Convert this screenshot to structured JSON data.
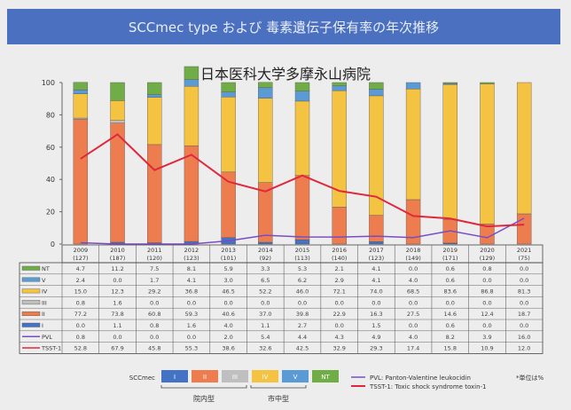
{
  "banner_title": "SCCmec type および 毒素遺伝子保有率の年次推移",
  "chart_data": {
    "type": "bar",
    "stacked": true,
    "title": "日本医科大学多摩永山病院",
    "ylim": [
      0,
      100
    ],
    "yticks": [
      0,
      20,
      40,
      60,
      80,
      100
    ],
    "categories": [
      "2009",
      "2010",
      "2011",
      "2012",
      "2013",
      "2014",
      "2015",
      "2016",
      "2017",
      "2018",
      "2019",
      "2020",
      "2021"
    ],
    "counts": [
      "(127)",
      "(187)",
      "(120)",
      "(123)",
      "(101)",
      "(92)",
      "(113)",
      "(140)",
      "(123)",
      "(149)",
      "(171)",
      "(129)",
      "(75)"
    ],
    "series": [
      {
        "name": "I",
        "kind": "bar",
        "color": "#4472c4",
        "values": [
          0.0,
          1.1,
          0.8,
          1.6,
          4.0,
          1.1,
          2.7,
          0.0,
          1.5,
          0.0,
          0.6,
          0.0,
          0.0
        ]
      },
      {
        "name": "II",
        "kind": "bar",
        "color": "#ed7d4f",
        "values": [
          77.2,
          73.8,
          60.8,
          59.3,
          40.6,
          37.0,
          39.8,
          22.9,
          16.3,
          27.5,
          14.6,
          12.4,
          18.7
        ]
      },
      {
        "name": "III",
        "kind": "bar",
        "color": "#bfbfbf",
        "values": [
          0.8,
          1.6,
          0.0,
          0.0,
          0.0,
          0.0,
          0.0,
          0.0,
          0.0,
          0.0,
          0.0,
          0.0,
          0.0
        ]
      },
      {
        "name": "IV",
        "kind": "bar",
        "color": "#f5c342",
        "values": [
          15.0,
          12.3,
          29.2,
          36.8,
          46.5,
          52.2,
          46.0,
          72.1,
          74.0,
          68.5,
          83.6,
          86.8,
          81.3
        ]
      },
      {
        "name": "V",
        "kind": "bar",
        "color": "#5b9bd5",
        "values": [
          2.4,
          0.0,
          1.7,
          4.1,
          3.0,
          6.5,
          6.2,
          2.9,
          4.1,
          4.0,
          0.6,
          0.0,
          0.0
        ]
      },
      {
        "name": "NT",
        "kind": "bar",
        "color": "#70ad47",
        "values": [
          4.7,
          11.2,
          7.5,
          8.1,
          5.9,
          3.3,
          5.3,
          2.1,
          4.1,
          0.0,
          0.6,
          0.8,
          0.0
        ]
      },
      {
        "name": "PVL",
        "kind": "line",
        "color": "#7a4cc2",
        "values": [
          0.8,
          0.0,
          0.0,
          0.0,
          2.0,
          5.4,
          4.4,
          4.3,
          4.9,
          4.0,
          8.2,
          3.9,
          16.0
        ]
      },
      {
        "name": "TSST-1",
        "kind": "line",
        "color": "#e0283c",
        "values": [
          52.8,
          67.9,
          45.8,
          55.3,
          38.6,
          32.6,
          42.5,
          32.9,
          29.3,
          17.4,
          15.8,
          10.9,
          12.0
        ]
      }
    ],
    "table_rows": [
      "NT",
      "V",
      "IV",
      "III",
      "II",
      "I",
      "PVL",
      "TSST-1"
    ],
    "legend": {
      "title": "SCCmec",
      "group_hospital": "院内型",
      "group_community": "市中型",
      "pvl": "PVL: Panton-Valentine leukocidin",
      "tsst": "TSST-1: Toxic shock syndrome toxin-1",
      "unit_note": "*単位は%"
    }
  }
}
